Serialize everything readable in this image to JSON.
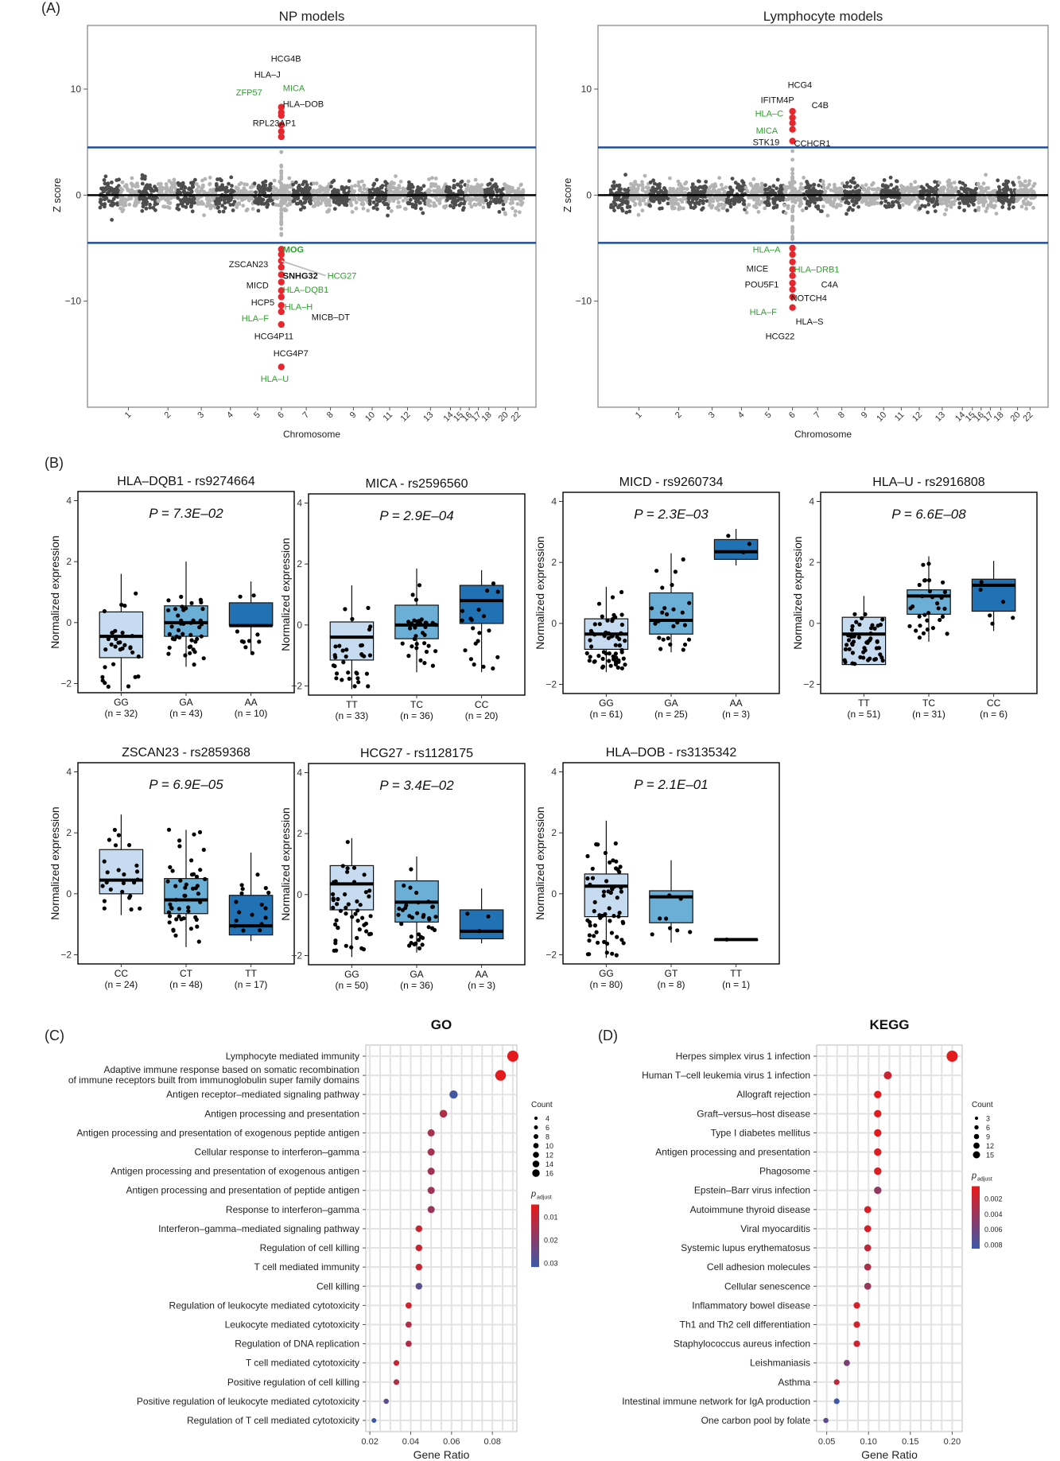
{
  "panel_labels": [
    "(A)",
    "(B)",
    "(C)",
    "(D)"
  ],
  "colors": {
    "dark_point": "#4d4d4d",
    "light_point": "#b3b3b3",
    "hit_point": "#e8262d",
    "threshold_line": "#1f4e9c",
    "green_label": "#2ca02c",
    "box_light": "#c6dbef",
    "box_mid": "#6baed6",
    "box_dark": "#2171b5",
    "padj_high": "#e41a1c",
    "padj_low": "#3f57a6"
  },
  "chart_data": [
    {
      "id": "manhattan_np",
      "type": "scatter",
      "title": "NP models",
      "xlabel": "Chromosome",
      "ylabel": "Z score",
      "x_ticks": [
        "1",
        "2",
        "3",
        "4",
        "5",
        "6",
        "7",
        "8",
        "9",
        "10",
        "11",
        "12",
        "13",
        "14",
        "15",
        "16",
        "17",
        "18",
        "20",
        "22"
      ],
      "y_ticks": [
        -10,
        0,
        10
      ],
      "ylim": [
        -20,
        16
      ],
      "threshold": 4.5,
      "highlight_chromosome": "6",
      "hits_pos": [
        7.8,
        8.3,
        7.5,
        6.6,
        6.0,
        5.5
      ],
      "hits_neg": [
        -5.1,
        -5.6,
        -6.2,
        -6.8,
        -7.5,
        -8.2,
        -9.0,
        -9.6,
        -10.4,
        -11.0,
        -12.2,
        -16.2
      ],
      "labels": [
        {
          "text": "HCG4B",
          "green": false,
          "bold": false
        },
        {
          "text": "HLA–J",
          "green": false,
          "bold": false
        },
        {
          "text": "ZFP57",
          "green": true,
          "bold": false
        },
        {
          "text": "MICA",
          "green": true,
          "bold": false
        },
        {
          "text": "HLA–DOB",
          "green": false,
          "bold": false
        },
        {
          "text": "RPL23AP1",
          "green": false,
          "bold": false
        },
        {
          "text": "MOG",
          "green": true,
          "bold": true
        },
        {
          "text": "ZSCAN23",
          "green": false,
          "bold": false
        },
        {
          "text": "HCG27",
          "green": true,
          "bold": false
        },
        {
          "text": "SNHG32",
          "green": false,
          "bold": true
        },
        {
          "text": "MICD",
          "green": false,
          "bold": false
        },
        {
          "text": "HLA–DQB1",
          "green": true,
          "bold": false
        },
        {
          "text": "HCP5",
          "green": false,
          "bold": false
        },
        {
          "text": "HLA–H",
          "green": true,
          "bold": false
        },
        {
          "text": "HLA–F",
          "green": true,
          "bold": false
        },
        {
          "text": "MICB–DT",
          "green": false,
          "bold": false
        },
        {
          "text": "HCG4P11",
          "green": false,
          "bold": false
        },
        {
          "text": "HCG4P7",
          "green": false,
          "bold": false
        },
        {
          "text": "HLA–U",
          "green": true,
          "bold": false
        }
      ]
    },
    {
      "id": "manhattan_lymph",
      "type": "scatter",
      "title": "Lymphocyte models",
      "xlabel": "Chromosome",
      "ylabel": "Z score",
      "x_ticks": [
        "1",
        "2",
        "3",
        "4",
        "5",
        "6",
        "7",
        "8",
        "9",
        "10",
        "11",
        "12",
        "13",
        "14",
        "15",
        "16",
        "17",
        "18",
        "20",
        "22"
      ],
      "y_ticks": [
        -10,
        0,
        10
      ],
      "ylim": [
        -20,
        16
      ],
      "threshold": 4.5,
      "highlight_chromosome": "6",
      "hits_pos": [
        7.9,
        7.3,
        6.8,
        6.2,
        5.1
      ],
      "hits_neg": [
        -5.0,
        -5.6,
        -6.3,
        -7.0,
        -7.6,
        -8.3,
        -8.9,
        -9.6,
        -10.6
      ],
      "labels": [
        {
          "text": "HCG4",
          "green": false,
          "bold": false
        },
        {
          "text": "IFITM4P",
          "green": false,
          "bold": false
        },
        {
          "text": "C4B",
          "green": false,
          "bold": false
        },
        {
          "text": "HLA–C",
          "green": true,
          "bold": false
        },
        {
          "text": "MICA",
          "green": true,
          "bold": false
        },
        {
          "text": "STK19",
          "green": false,
          "bold": false
        },
        {
          "text": "CCHCR1",
          "green": false,
          "bold": false
        },
        {
          "text": "HLA–A",
          "green": true,
          "bold": false
        },
        {
          "text": "MICE",
          "green": false,
          "bold": false
        },
        {
          "text": "HLA–DRB1",
          "green": true,
          "bold": false
        },
        {
          "text": "POU5F1",
          "green": false,
          "bold": false
        },
        {
          "text": "C4A",
          "green": false,
          "bold": false
        },
        {
          "text": "NOTCH4",
          "green": false,
          "bold": false
        },
        {
          "text": "HLA–F",
          "green": true,
          "bold": false
        },
        {
          "text": "HLA–S",
          "green": false,
          "bold": false
        },
        {
          "text": "HCG22",
          "green": false,
          "bold": false
        }
      ]
    },
    {
      "id": "eqtl_boxplots",
      "type": "box",
      "ylabel": "Normalized expression",
      "y_ticks": [
        -2,
        0,
        2,
        4
      ],
      "ylim": [
        -2.3,
        4.3
      ],
      "panels": [
        {
          "title": "HLA–DQB1 - rs9274664",
          "p": "P = 7.3E–02",
          "groups": [
            {
              "genotype": "GG",
              "n": "(n = 32)",
              "q1": -1.15,
              "median": -0.45,
              "q3": 0.35,
              "min": -2.25,
              "max": 1.6
            },
            {
              "genotype": "GA",
              "n": "(n = 43)",
              "q1": -0.45,
              "median": 0.0,
              "q3": 0.55,
              "min": -1.45,
              "max": 2.0
            },
            {
              "genotype": "AA",
              "n": "(n = 10)",
              "q1": -0.1,
              "median": -0.1,
              "q3": 0.65,
              "min": -1.05,
              "max": 1.35
            }
          ]
        },
        {
          "title": "MICA - rs2596560",
          "p": "P = 2.9E–04",
          "groups": [
            {
              "genotype": "TT",
              "n": "(n = 33)",
              "q1": -1.15,
              "median": -0.4,
              "q3": 0.1,
              "min": -2.1,
              "max": 1.3
            },
            {
              "genotype": "TC",
              "n": "(n = 36)",
              "q1": -0.45,
              "median": 0.0,
              "q3": 0.65,
              "min": -1.55,
              "max": 1.85
            },
            {
              "genotype": "CC",
              "n": "(n = 20)",
              "q1": 0.05,
              "median": 0.8,
              "q3": 1.3,
              "min": -1.55,
              "max": 1.8
            }
          ]
        },
        {
          "title": "MICD - rs9260734",
          "p": "P = 2.3E–03",
          "groups": [
            {
              "genotype": "GG",
              "n": "(n = 61)",
              "q1": -0.85,
              "median": -0.35,
              "q3": 0.15,
              "min": -1.6,
              "max": 1.2
            },
            {
              "genotype": "GA",
              "n": "(n = 25)",
              "q1": -0.35,
              "median": 0.1,
              "q3": 1.0,
              "min": -0.95,
              "max": 2.3
            },
            {
              "genotype": "AA",
              "n": "(n = 3)",
              "q1": 2.1,
              "median": 2.35,
              "q3": 2.75,
              "min": 1.9,
              "max": 3.1
            }
          ]
        },
        {
          "title": "HLA–U - rs2916808",
          "p": "P = 6.6E–08",
          "groups": [
            {
              "genotype": "TT",
              "n": "(n = 51)",
              "q1": -1.35,
              "median": -0.35,
              "q3": 0.2,
              "min": -1.35,
              "max": 0.9
            },
            {
              "genotype": "TC",
              "n": "(n = 31)",
              "q1": 0.3,
              "median": 0.9,
              "q3": 1.1,
              "min": -0.6,
              "max": 2.2
            },
            {
              "genotype": "CC",
              "n": "(n = 6)",
              "q1": 0.4,
              "median": 1.25,
              "q3": 1.45,
              "min": -0.25,
              "max": 2.05
            }
          ]
        },
        {
          "title": "ZSCAN23 - rs2859368",
          "p": "P = 6.9E–05",
          "groups": [
            {
              "genotype": "CC",
              "n": "(n = 24)",
              "q1": 0.0,
              "median": 0.45,
              "q3": 1.45,
              "min": -0.7,
              "max": 2.6
            },
            {
              "genotype": "CT",
              "n": "(n = 48)",
              "q1": -0.65,
              "median": -0.2,
              "q3": 0.5,
              "min": -1.75,
              "max": 2.1
            },
            {
              "genotype": "TT",
              "n": "(n = 17)",
              "q1": -1.35,
              "median": -1.05,
              "q3": -0.05,
              "min": -1.55,
              "max": 1.35
            }
          ]
        },
        {
          "title": "HCG27 - rs1128175",
          "p": "P = 3.4E–02",
          "groups": [
            {
              "genotype": "GG",
              "n": "(n = 50)",
              "q1": -0.5,
              "median": 0.35,
              "q3": 0.95,
              "min": -2.05,
              "max": 1.85
            },
            {
              "genotype": "GA",
              "n": "(n = 36)",
              "q1": -0.9,
              "median": -0.25,
              "q3": 0.45,
              "min": -1.9,
              "max": 1.25
            },
            {
              "genotype": "AA",
              "n": "(n = 3)",
              "q1": -1.45,
              "median": -1.2,
              "q3": -0.5,
              "min": -1.6,
              "max": 0.2
            }
          ]
        },
        {
          "title": "HLA–DOB - rs3135342",
          "p": "P = 2.1E–01",
          "groups": [
            {
              "genotype": "GG",
              "n": "(n = 80)",
              "q1": -0.75,
              "median": 0.25,
              "q3": 0.65,
              "min": -2.1,
              "max": 2.4
            },
            {
              "genotype": "GT",
              "n": "(n = 8)",
              "q1": -0.95,
              "median": -0.1,
              "q3": 0.1,
              "min": -1.6,
              "max": 1.1
            },
            {
              "genotype": "TT",
              "n": "(n = 1)",
              "q1": -1.5,
              "median": -1.5,
              "q3": -1.5,
              "min": -1.5,
              "max": -1.5
            }
          ]
        }
      ]
    },
    {
      "id": "go_dotplot",
      "type": "scatter",
      "title": "GO",
      "xlabel": "Gene Ratio",
      "x_ticks": [
        0.02,
        0.04,
        0.06,
        0.08
      ],
      "xlim": [
        0.018,
        0.092
      ],
      "legend": {
        "count_title": "Count",
        "counts": [
          4,
          6,
          8,
          10,
          12,
          14,
          16
        ],
        "padj_title": "p",
        "padj_sub": "adjust",
        "padj_ticks": [
          "0.01",
          "0.02",
          "0.03"
        ]
      },
      "terms": [
        {
          "label": "Lymphocyte mediated immunity",
          "ratio": 0.09,
          "count": 17,
          "padj": 0.001
        },
        {
          "label": "Adaptive immune response based on somatic recombination of immune receptors built from immunoglobulin super family domains",
          "ratio": 0.084,
          "count": 16,
          "padj": 0.001
        },
        {
          "label": "Antigen receptor–mediated signaling pathway",
          "ratio": 0.061,
          "count": 11,
          "padj": 0.035
        },
        {
          "label": "Antigen processing and presentation",
          "ratio": 0.056,
          "count": 10,
          "padj": 0.012
        },
        {
          "label": "Antigen processing and presentation of exogenous peptide antigen",
          "ratio": 0.05,
          "count": 9,
          "padj": 0.014
        },
        {
          "label": "Cellular response to interferon–gamma",
          "ratio": 0.05,
          "count": 9,
          "padj": 0.014
        },
        {
          "label": "Antigen processing and presentation of exogenous antigen",
          "ratio": 0.05,
          "count": 9,
          "padj": 0.015
        },
        {
          "label": "Antigen processing and presentation of peptide antigen",
          "ratio": 0.05,
          "count": 9,
          "padj": 0.016
        },
        {
          "label": "Response to interferon–gamma",
          "ratio": 0.05,
          "count": 9,
          "padj": 0.017
        },
        {
          "label": "Interferon–gamma–mediated signaling pathway",
          "ratio": 0.044,
          "count": 8,
          "padj": 0.006
        },
        {
          "label": "Regulation of cell killing",
          "ratio": 0.044,
          "count": 8,
          "padj": 0.006
        },
        {
          "label": "T cell mediated immunity",
          "ratio": 0.044,
          "count": 8,
          "padj": 0.007
        },
        {
          "label": "Cell killing",
          "ratio": 0.044,
          "count": 8,
          "padj": 0.03
        },
        {
          "label": "Regulation of leukocyte mediated cytotoxicity",
          "ratio": 0.039,
          "count": 7,
          "padj": 0.006
        },
        {
          "label": "Leukocyte mediated cytotoxicity",
          "ratio": 0.039,
          "count": 7,
          "padj": 0.012
        },
        {
          "label": "Regulation of DNA replication",
          "ratio": 0.039,
          "count": 7,
          "padj": 0.012
        },
        {
          "label": "T cell mediated cytotoxicity",
          "ratio": 0.033,
          "count": 6,
          "padj": 0.006
        },
        {
          "label": "Positive regulation of cell killing",
          "ratio": 0.033,
          "count": 6,
          "padj": 0.012
        },
        {
          "label": "Positive regulation of leukocyte mediated cytotoxicity",
          "ratio": 0.028,
          "count": 5,
          "padj": 0.03
        },
        {
          "label": "Regulation of T cell mediated cytotoxicity",
          "ratio": 0.022,
          "count": 4,
          "padj": 0.036
        }
      ]
    },
    {
      "id": "kegg_dotplot",
      "type": "scatter",
      "title": "KEGG",
      "xlabel": "Gene Ratio",
      "x_ticks": [
        0.05,
        0.1,
        0.15,
        0.2
      ],
      "xlim": [
        0.038,
        0.212
      ],
      "legend": {
        "count_title": "Count",
        "counts": [
          3,
          6,
          9,
          12,
          15
        ],
        "padj_title": "p",
        "padj_sub": "adjust",
        "padj_ticks": [
          "0.002",
          "0.004",
          "0.006",
          "0.008"
        ]
      },
      "terms": [
        {
          "label": "Herpes simplex virus 1 infection",
          "ratio": 0.2,
          "count": 17,
          "padj": 0.0002
        },
        {
          "label": "Human T–cell leukemia virus 1 infection",
          "ratio": 0.123,
          "count": 10,
          "padj": 0.0015
        },
        {
          "label": "Allograft rejection",
          "ratio": 0.111,
          "count": 9,
          "padj": 0.0003
        },
        {
          "label": "Graft–versus–host disease",
          "ratio": 0.111,
          "count": 9,
          "padj": 0.0003
        },
        {
          "label": "Type I diabetes mellitus",
          "ratio": 0.111,
          "count": 9,
          "padj": 0.0003
        },
        {
          "label": "Antigen processing and presentation",
          "ratio": 0.111,
          "count": 9,
          "padj": 0.0005
        },
        {
          "label": "Phagosome",
          "ratio": 0.111,
          "count": 9,
          "padj": 0.0006
        },
        {
          "label": "Epstein–Barr virus infection",
          "ratio": 0.111,
          "count": 9,
          "padj": 0.0045
        },
        {
          "label": "Autoimmune thyroid disease",
          "ratio": 0.099,
          "count": 8,
          "padj": 0.0008
        },
        {
          "label": "Viral myocarditis",
          "ratio": 0.099,
          "count": 8,
          "padj": 0.0009
        },
        {
          "label": "Systemic lupus erythematosus",
          "ratio": 0.099,
          "count": 8,
          "padj": 0.002
        },
        {
          "label": "Cell adhesion molecules",
          "ratio": 0.099,
          "count": 8,
          "padj": 0.003
        },
        {
          "label": "Cellular senescence",
          "ratio": 0.099,
          "count": 8,
          "padj": 0.004
        },
        {
          "label": "Inflammatory bowel disease",
          "ratio": 0.086,
          "count": 7,
          "padj": 0.001
        },
        {
          "label": "Th1 and Th2 cell differentiation",
          "ratio": 0.086,
          "count": 7,
          "padj": 0.0012
        },
        {
          "label": "Staphylococcus aureus infection",
          "ratio": 0.086,
          "count": 7,
          "padj": 0.0014
        },
        {
          "label": "Leishmaniasis",
          "ratio": 0.074,
          "count": 6,
          "padj": 0.0055
        },
        {
          "label": "Asthma",
          "ratio": 0.062,
          "count": 5,
          "padj": 0.002
        },
        {
          "label": "Intestinal immune network for IgA production",
          "ratio": 0.062,
          "count": 5,
          "padj": 0.0085
        },
        {
          "label": "One carbon pool by folate",
          "ratio": 0.049,
          "count": 4,
          "padj": 0.007
        }
      ]
    }
  ]
}
